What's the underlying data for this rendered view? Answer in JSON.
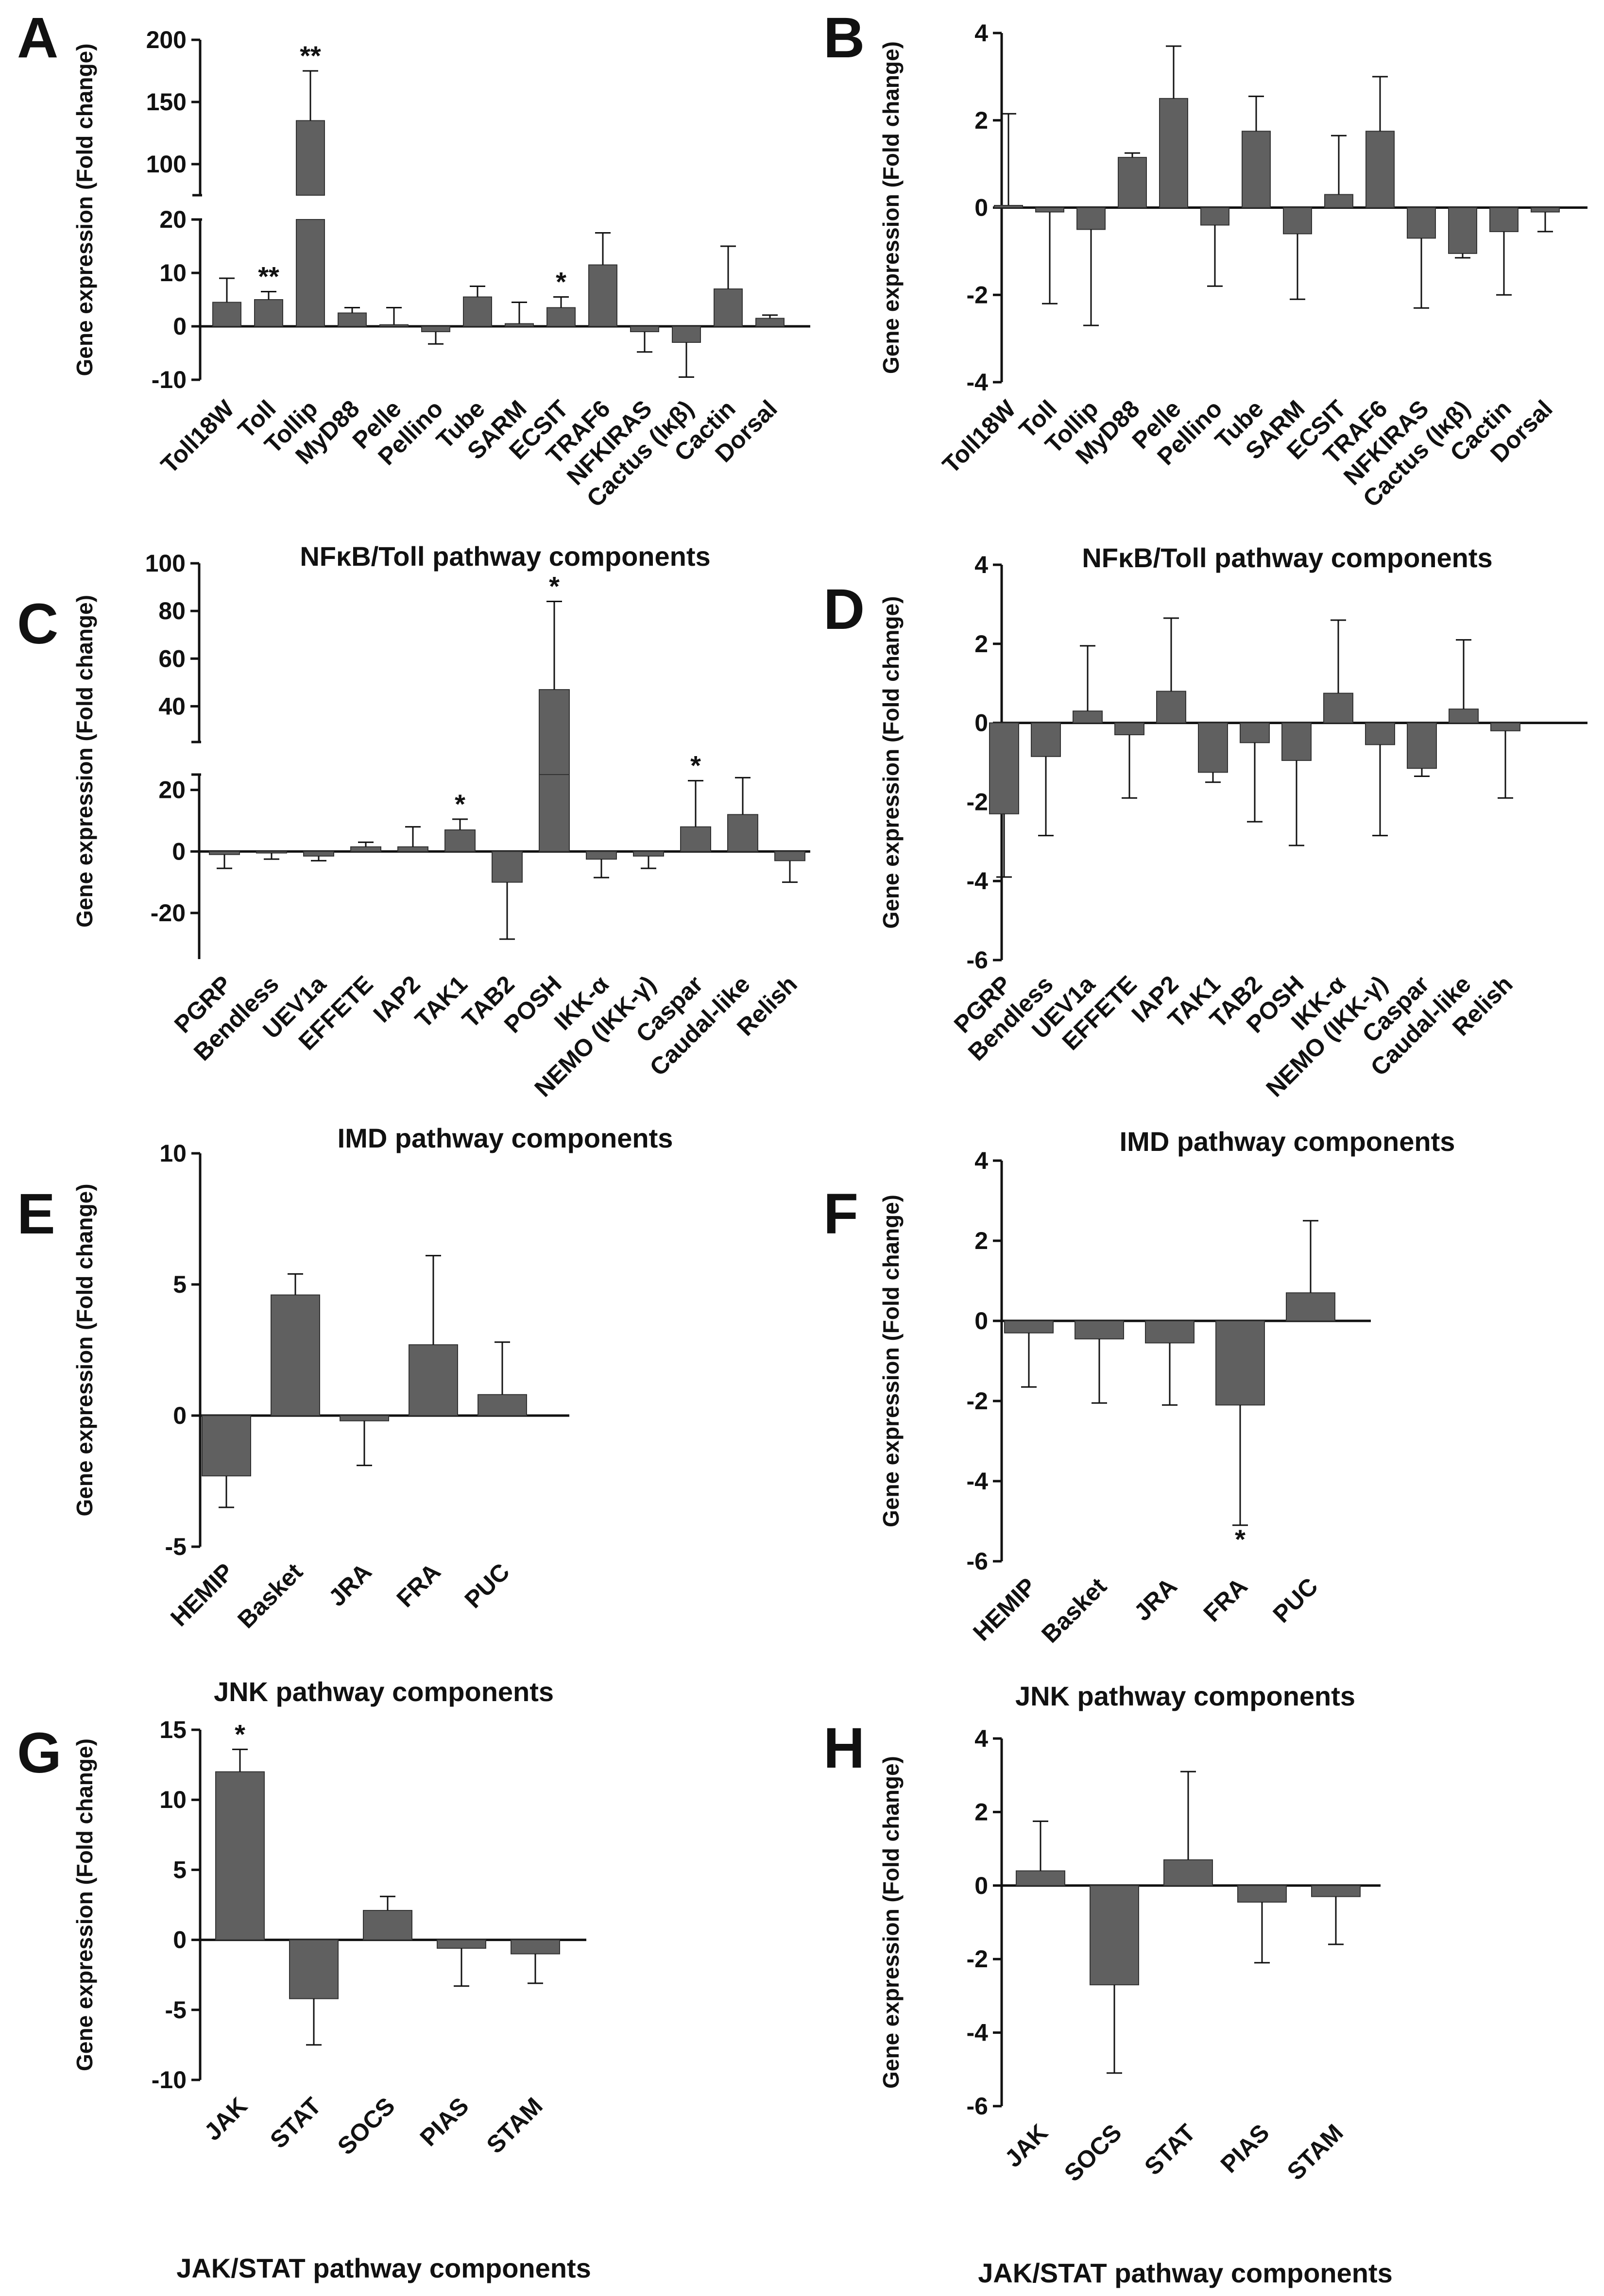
{
  "figure": {
    "colors": {
      "bar": "#606060",
      "axis": "#111111",
      "error": "#111111",
      "background": "#ffffff"
    }
  },
  "chart_data": [
    {
      "panel": "A",
      "type": "bar",
      "title": "",
      "ylabel": "Gene expression (Fold change)",
      "xlabel": "NFκB/Toll pathway components",
      "categories": [
        "Toll18W",
        "Toll",
        "Tollip",
        "MyD88",
        "Pelle",
        "Pellino",
        "Tube",
        "SARM",
        "ECSIT",
        "TRAF6",
        "NFKIRAS",
        "Cactus (Iκβ)",
        "Cactin",
        "Dorsal"
      ],
      "values": [
        4.5,
        5,
        135,
        2.5,
        0.3,
        -1,
        5.5,
        0.5,
        3.5,
        11.5,
        -1,
        -3,
        7,
        1.5
      ],
      "errors": [
        4.5,
        1.5,
        40,
        1,
        3.2,
        2.3,
        2,
        4,
        2,
        6,
        3.8,
        6.5,
        8,
        0.6
      ],
      "significance": [
        "",
        "**",
        "**",
        "",
        "",
        "",
        "",
        "",
        "*",
        "",
        "",
        "",
        "",
        ""
      ],
      "ylim": [
        -10,
        200
      ],
      "axis_break": {
        "lower": [
          -10,
          20
        ],
        "upper": [
          75,
          200
        ]
      },
      "yticks_lower": [
        "-10",
        "0",
        "10",
        "20"
      ],
      "yticks_upper": [
        "100",
        "150",
        "200"
      ]
    },
    {
      "panel": "B",
      "type": "bar",
      "title": "",
      "ylabel": "Gene expression (Fold change)",
      "xlabel": "NFκB/Toll pathway components",
      "categories": [
        "Toll18W",
        "Toll",
        "Tollip",
        "MyD88",
        "Pelle",
        "Pellino",
        "Tube",
        "SARM",
        "ECSIT",
        "TRAF6",
        "NFKIRAS",
        "Cactus (Iκβ)",
        "Cactin",
        "Dorsal"
      ],
      "values": [
        0.05,
        -0.1,
        -0.5,
        1.15,
        2.5,
        -0.4,
        1.75,
        -0.6,
        0.3,
        1.75,
        -0.7,
        -1.05,
        -0.55,
        -0.1
      ],
      "errors": [
        2.1,
        2.1,
        2.2,
        0.1,
        1.2,
        1.4,
        0.8,
        1.5,
        1.35,
        1.25,
        1.6,
        0.1,
        1.45,
        0.45
      ],
      "significance": [
        "",
        "",
        "",
        "",
        "",
        "",
        "",
        "",
        "",
        "",
        "",
        "",
        "",
        ""
      ],
      "ylim": [
        -4,
        4
      ],
      "yticks": [
        "-4",
        "-2",
        "0",
        "2",
        "4"
      ]
    },
    {
      "panel": "C",
      "type": "bar",
      "title": "",
      "ylabel": "Gene expression (Fold change)",
      "xlabel": "IMD pathway components",
      "categories": [
        "PGRP",
        "Bendless",
        "UEV1a",
        "EFFETE",
        "IAP2",
        "TAK1",
        "TAB2",
        "POSH",
        "IKK-α",
        "NEMO (IKK-γ)",
        "Caspar",
        "Caudal-like",
        "Relish"
      ],
      "values": [
        -1,
        -0.5,
        -1.5,
        1.5,
        1.5,
        7,
        -10,
        47,
        -2.5,
        -1.5,
        8,
        12,
        -3
      ],
      "errors": [
        4.5,
        2,
        1.5,
        1.5,
        6.5,
        3.5,
        18.5,
        37,
        6,
        4,
        15,
        12,
        7
      ],
      "significance": [
        "",
        "",
        "",
        "",
        "",
        "*",
        "",
        "*",
        "",
        "",
        "*",
        "",
        ""
      ],
      "ylim": [
        -35,
        100
      ],
      "axis_break": {
        "lower": [
          -35,
          25
        ],
        "upper": [
          25,
          100
        ]
      },
      "yticks_lower": [
        "-20",
        "0",
        "20"
      ],
      "yticks_upper": [
        "40",
        "60",
        "80",
        "100"
      ]
    },
    {
      "panel": "D",
      "type": "bar",
      "title": "",
      "ylabel": "Gene expression (Fold change)",
      "xlabel": "IMD pathway components",
      "categories": [
        "PGRP",
        "Bendless",
        "UEV1a",
        "EFFETE",
        "IAP2",
        "TAK1",
        "TAB2",
        "POSH",
        "IKK-α",
        "NEMO (IKK-γ)",
        "Caspar",
        "Caudal-like",
        "Relish"
      ],
      "values": [
        -2.3,
        -0.85,
        0.3,
        -0.3,
        0.8,
        -1.25,
        -0.5,
        -0.95,
        0.75,
        -0.55,
        -1.15,
        0.35,
        -0.2
      ],
      "errors": [
        1.6,
        2,
        1.65,
        1.6,
        1.85,
        0.25,
        2,
        2.15,
        1.85,
        2.3,
        0.2,
        1.75,
        1.7
      ],
      "significance": [
        "",
        "",
        "",
        "",
        "",
        "",
        "",
        "",
        "",
        "",
        "",
        "",
        ""
      ],
      "ylim": [
        -6,
        4
      ],
      "yticks": [
        "-6",
        "-4",
        "-2",
        "0",
        "2",
        "4"
      ]
    },
    {
      "panel": "E",
      "type": "bar",
      "title": "",
      "ylabel": "Gene expression (Fold change)",
      "xlabel": "JNK pathway components",
      "categories": [
        "HEMIP",
        "Basket",
        "JRA",
        "FRA",
        "PUC"
      ],
      "values": [
        -2.3,
        4.6,
        -0.2,
        2.7,
        0.8
      ],
      "errors": [
        1.2,
        0.8,
        1.7,
        3.4,
        2
      ],
      "significance": [
        "",
        "",
        "",
        "",
        ""
      ],
      "ylim": [
        -5,
        10
      ],
      "yticks": [
        "-5",
        "0",
        "5",
        "10"
      ]
    },
    {
      "panel": "F",
      "type": "bar",
      "title": "",
      "ylabel": "Gene expression (Fold change)",
      "xlabel": "JNK pathway components",
      "categories": [
        "HEMIP",
        "Basket",
        "JRA",
        "FRA",
        "PUC"
      ],
      "values": [
        -0.3,
        -0.45,
        -0.55,
        -2.1,
        0.7
      ],
      "errors": [
        1.35,
        1.6,
        1.55,
        3,
        1.8
      ],
      "significance": [
        "",
        "",
        "",
        "*",
        ""
      ],
      "ylim": [
        -6,
        4
      ],
      "yticks": [
        "-6",
        "-4",
        "-2",
        "0",
        "2",
        "4"
      ]
    },
    {
      "panel": "G",
      "type": "bar",
      "title": "",
      "ylabel": "Gene expression (Fold change)",
      "xlabel": "JAK/STAT pathway components",
      "categories": [
        "JAK",
        "STAT",
        "SOCS",
        "PIAS",
        "STAM"
      ],
      "values": [
        12,
        -4.2,
        2.1,
        -0.6,
        -1
      ],
      "errors": [
        1.6,
        3.3,
        1,
        2.7,
        2.1
      ],
      "significance": [
        "*",
        "",
        "",
        "",
        ""
      ],
      "ylim": [
        -10,
        15
      ],
      "yticks": [
        "-10",
        "-5",
        "0",
        "5",
        "10",
        "15"
      ]
    },
    {
      "panel": "H",
      "type": "bar",
      "title": "",
      "ylabel": "Gene expression (Fold change)",
      "xlabel": "JAK/STAT pathway components",
      "categories": [
        "JAK",
        "SOCS",
        "STAT",
        "PIAS",
        "STAM"
      ],
      "values": [
        0.4,
        -2.7,
        0.7,
        -0.45,
        -0.3
      ],
      "errors": [
        1.35,
        2.4,
        2.4,
        1.65,
        1.3
      ],
      "significance": [
        "",
        "",
        "",
        "",
        ""
      ],
      "ylim": [
        -6,
        4
      ],
      "yticks": [
        "-6",
        "-4",
        "-2",
        "0",
        "2",
        "4"
      ]
    }
  ]
}
